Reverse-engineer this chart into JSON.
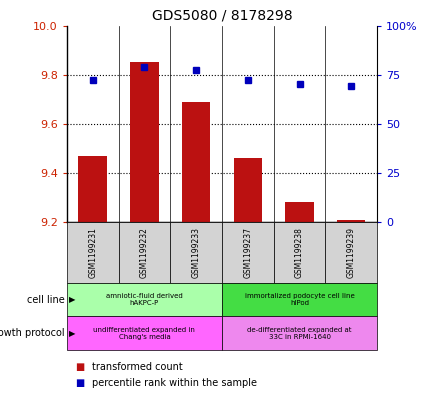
{
  "title": "GDS5080 / 8178298",
  "samples": [
    "GSM1199231",
    "GSM1199232",
    "GSM1199233",
    "GSM1199237",
    "GSM1199238",
    "GSM1199239"
  ],
  "transformed_count": [
    9.47,
    9.85,
    9.69,
    9.46,
    9.28,
    9.21
  ],
  "percentile_rank": [
    72.5,
    79.0,
    77.5,
    72.5,
    70.5,
    69.0
  ],
  "ylim_left": [
    9.2,
    10.0
  ],
  "ylim_right": [
    0,
    100
  ],
  "yticks_left": [
    9.2,
    9.4,
    9.6,
    9.8,
    10.0
  ],
  "yticks_right": [
    0,
    25,
    50,
    75,
    100
  ],
  "bar_color": "#bb1111",
  "dot_color": "#0000bb",
  "bar_bottom": 9.2,
  "bar_width": 0.55,
  "cell_line_groups": [
    {
      "label": "amniotic-fluid derived\nhAKPC-P",
      "start": 0,
      "end": 3,
      "color": "#aaffaa"
    },
    {
      "label": "immortalized podocyte cell line\nhIPod",
      "start": 3,
      "end": 6,
      "color": "#44dd44"
    }
  ],
  "growth_protocol_groups": [
    {
      "label": "undifferentiated expanded in\nChang's media",
      "start": 0,
      "end": 3,
      "color": "#ff66ff"
    },
    {
      "label": "de-differentiated expanded at\n33C in RPMI-1640",
      "start": 3,
      "end": 6,
      "color": "#ee88ee"
    }
  ],
  "left_label_color": "#cc2200",
  "right_label_color": "#0000cc",
  "tick_label_bg": "#d3d3d3",
  "grid_dotted_color": "#000000"
}
